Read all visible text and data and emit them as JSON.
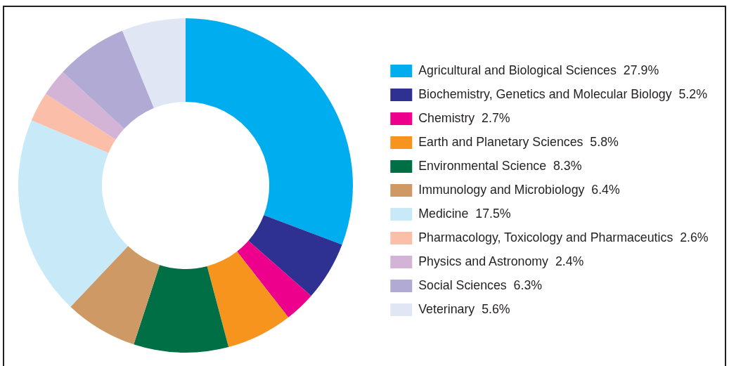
{
  "chart_data": {
    "type": "donut",
    "categories": [
      "Agricultural and Biological Sciences",
      "Biochemistry, Genetics and Molecular Biology",
      "Chemistry",
      "Earth and Planetary Sciences",
      "Environmental Science",
      "Immunology and Microbiology",
      "Medicine",
      "Pharmacology, Toxicology and Pharmaceutics",
      "Physics and Astronomy",
      "Social Sciences",
      "Veterinary"
    ],
    "values": [
      27.9,
      5.2,
      2.7,
      5.8,
      8.3,
      6.4,
      17.5,
      2.6,
      2.4,
      6.3,
      5.6
    ],
    "value_labels": [
      "27.9%",
      "5.2%",
      "2.7%",
      "5.8%",
      "8.3%",
      "6.4%",
      "17.5%",
      "2.6%",
      "2.4%",
      "6.3%",
      "5.6%"
    ],
    "colors": [
      "#00aeef",
      "#2e3192",
      "#ec008c",
      "#f7941d",
      "#006f45",
      "#cf9965",
      "#c7e9f8",
      "#fbbfa9",
      "#d4b4d6",
      "#b0aad4",
      "#e0e6f4"
    ],
    "legend": "right"
  }
}
